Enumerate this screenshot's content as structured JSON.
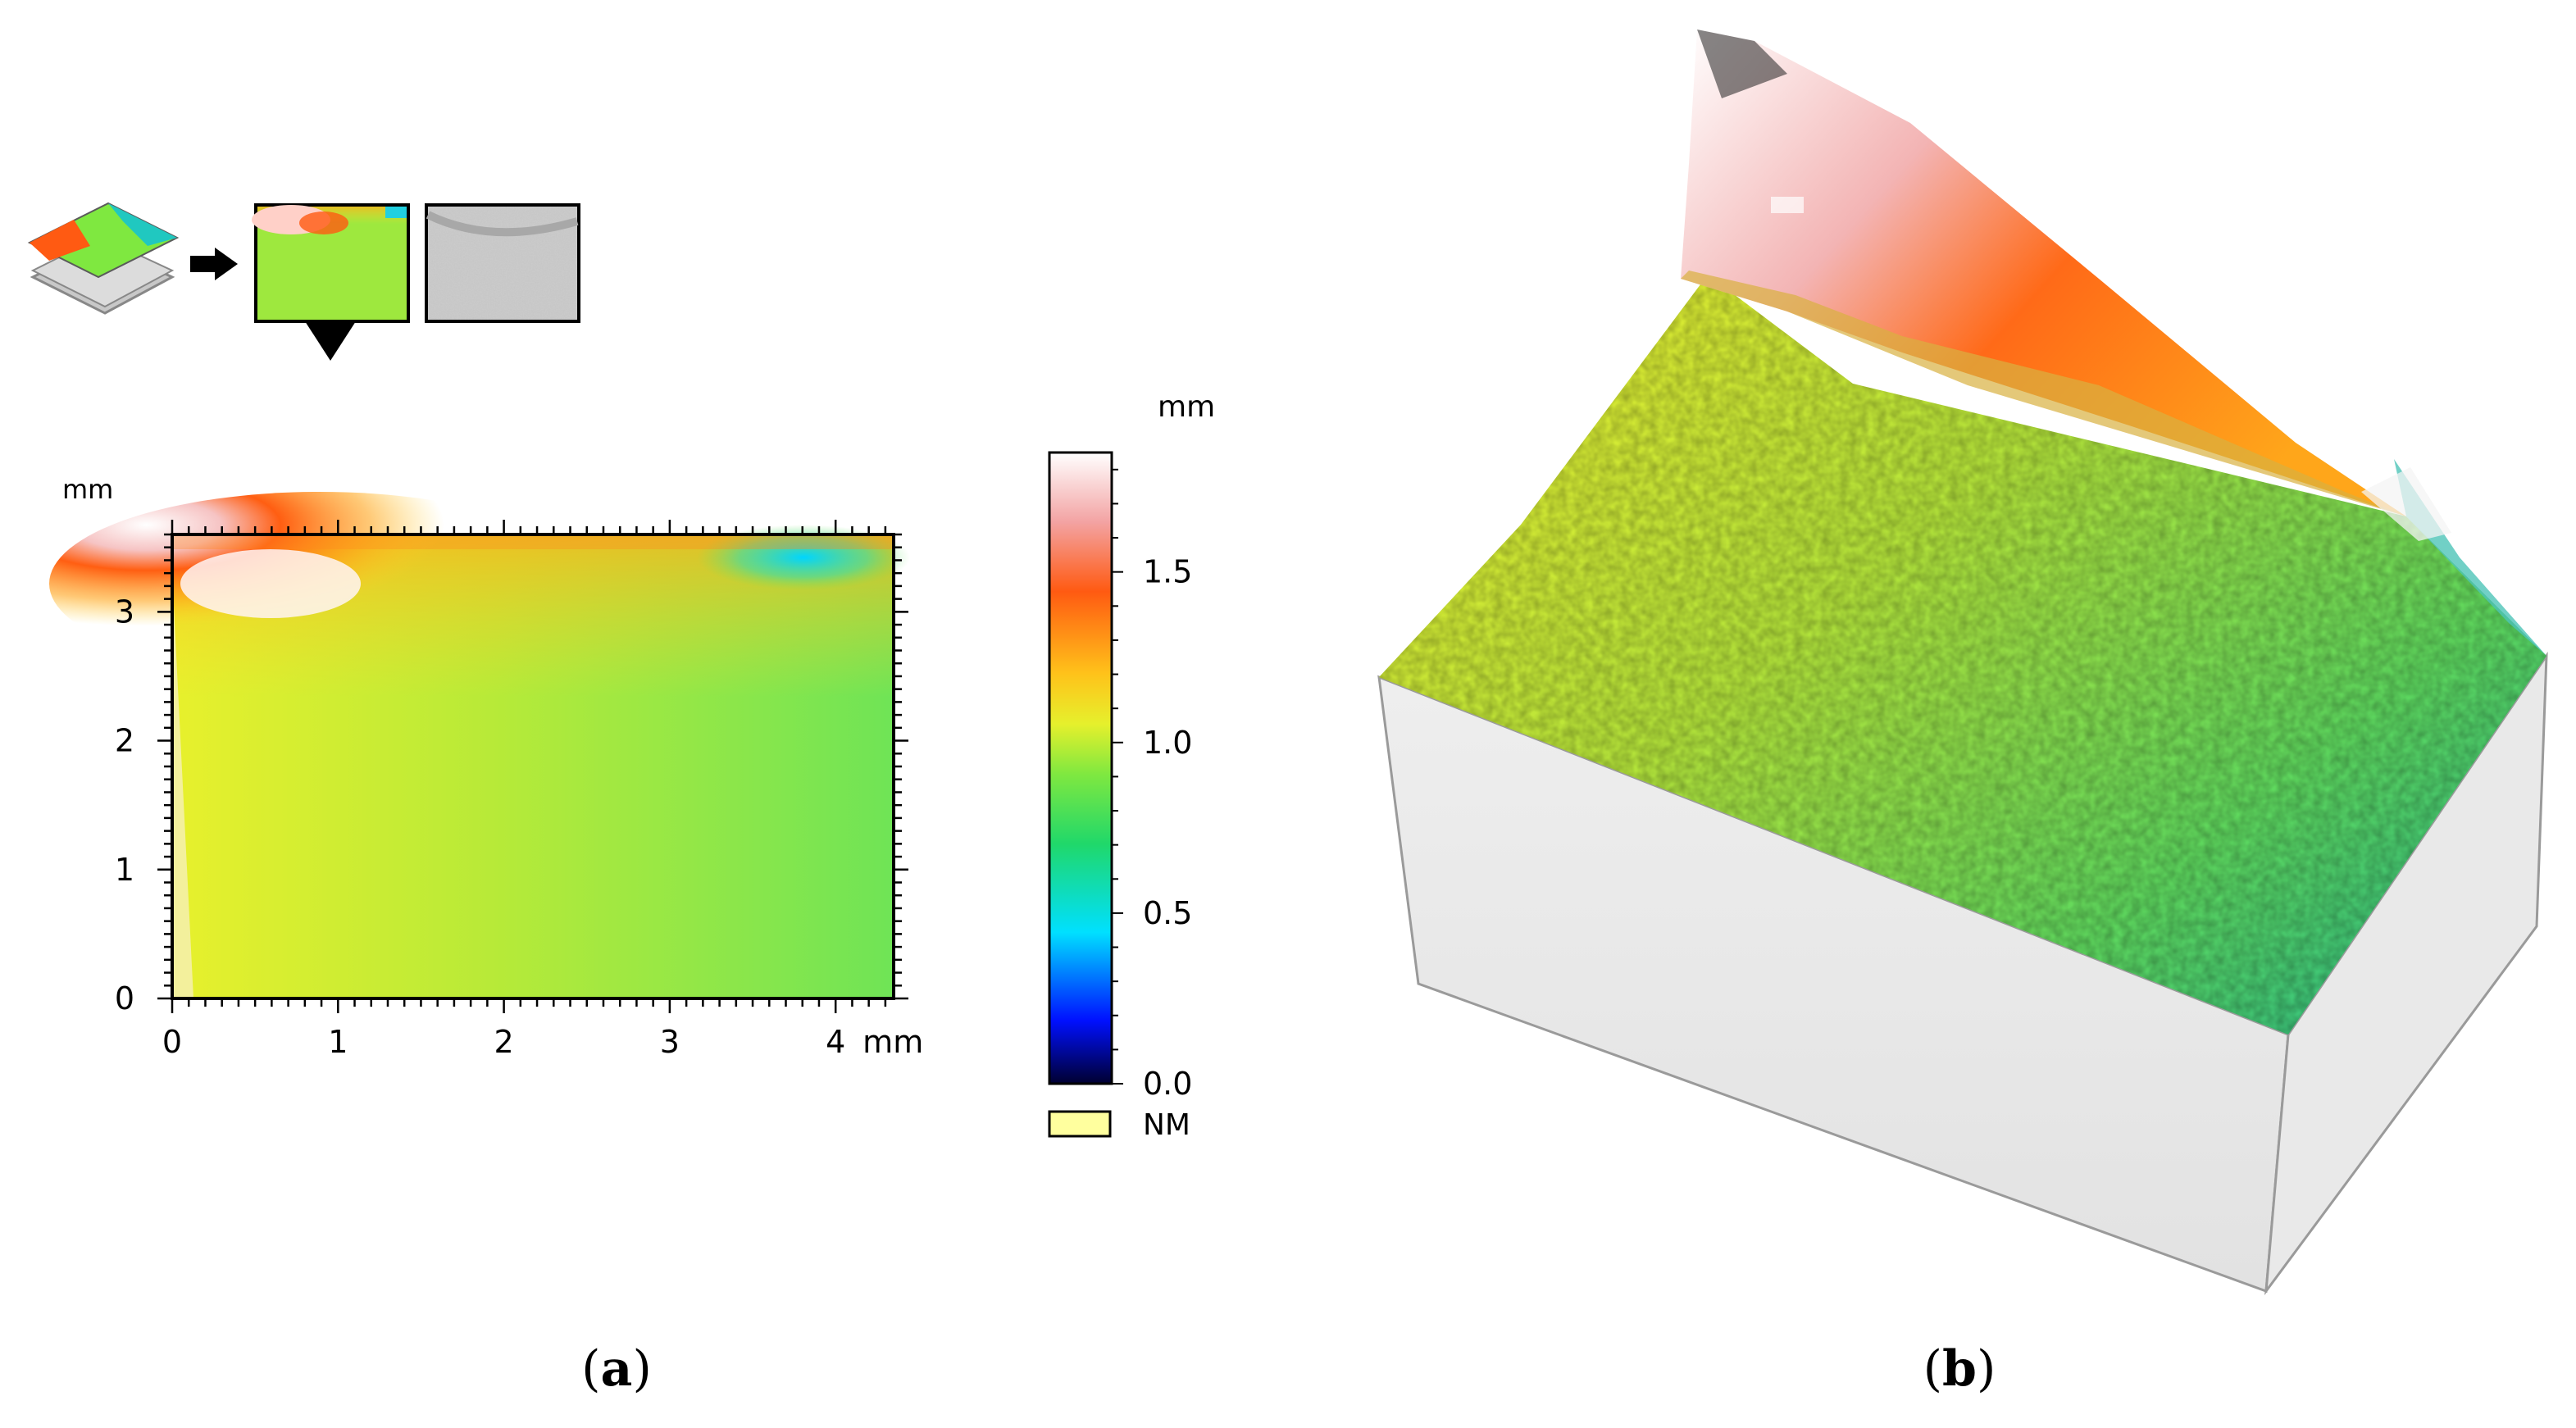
{
  "chart_data": [
    {
      "panel": "(a)",
      "type": "heatmap",
      "title": "",
      "xlabel": "mm",
      "ylabel": "mm",
      "xlim": [
        0,
        4.35
      ],
      "ylim": [
        0,
        3.6
      ],
      "xticks": [
        0,
        1,
        2,
        3,
        4
      ],
      "yticks": [
        0,
        1,
        2,
        3
      ],
      "colorbar": {
        "unit": "mm",
        "range": [
          0.0,
          1.85
        ],
        "ticks": [
          "0.0",
          "0.5",
          "1.0",
          "1.5"
        ],
        "stops": [
          {
            "value": 0.0,
            "color": "#000030"
          },
          {
            "value": 0.2,
            "color": "#0010ff"
          },
          {
            "value": 0.45,
            "color": "#00e0ff"
          },
          {
            "value": 0.7,
            "color": "#20d86a"
          },
          {
            "value": 0.9,
            "color": "#7fe840"
          },
          {
            "value": 1.05,
            "color": "#e6f02c"
          },
          {
            "value": 1.2,
            "color": "#ffc21a"
          },
          {
            "value": 1.45,
            "color": "#ff5a12"
          },
          {
            "value": 1.65,
            "color": "#f3a3a3"
          },
          {
            "value": 1.85,
            "color": "#ffffff"
          }
        ],
        "nm_label": "NM",
        "nm_color": "#ffff9e"
      },
      "surface_summary": "height map: ~1.0 mm over most of area, rising to ~1.8 mm near top-left, ~0.6 mm near top-right",
      "icons": [
        "layers-icon",
        "arrow-right-icon",
        "height-map-thumb",
        "gray-map-thumb",
        "triangle-down-icon"
      ]
    },
    {
      "panel": "(b)",
      "type": "surface-3d",
      "title": ""
    }
  ],
  "labels": {
    "panel_a": "a",
    "panel_b": "b"
  }
}
